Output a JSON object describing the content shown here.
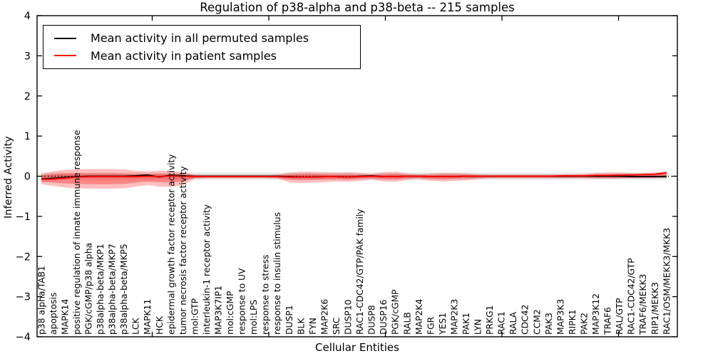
{
  "chart_data": {
    "type": "line",
    "title": "Regulation of p38-alpha and p38-beta -- 215 samples",
    "xlabel": "Cellular Entities",
    "ylabel": "Inferred Activity",
    "ylim": [
      -4,
      4
    ],
    "yticks": [
      -4,
      -3,
      -2,
      -1,
      0,
      1,
      2,
      3,
      4
    ],
    "grid": false,
    "legend_position": "upper left",
    "categories": [
      "p38 alpha/TAB1",
      "apoptosis",
      "MAPK14",
      "positive regulation of innate immune response",
      "PGK/cGMP/p38 alpha",
      "p38alpha-beta/MKP1",
      "p38alpha-beta/MKP7",
      "p38alpha-beta/MKP5",
      "LCK",
      "MAPK11",
      "HCK",
      "epidermal growth factor receptor activity",
      "tumor necrosis factor receptor activity",
      "mol:GTP",
      "interleukin-1 receptor activity",
      "MAP3K7IP1",
      "mol:cGMP",
      "response to UV",
      "mol:LPS",
      "response to stress",
      "response to insulin stimulus",
      "DUSP1",
      "BLK",
      "FYN",
      "MAP2K6",
      "SRC",
      "DUSP10",
      "RAC1-CDC42/GTP/PAK family",
      "DUSP8",
      "DUSP16",
      "PGK/cGMP",
      "RALB",
      "MAP2K4",
      "FGR",
      "YES1",
      "MAP2K3",
      "PAK1",
      "LYN",
      "PRKG1",
      "RAC1",
      "RALA",
      "CDC42",
      "CCM2",
      "PAK3",
      "MAP3K3",
      "RIPK1",
      "PAK2",
      "MAP3K12",
      "TRAF6",
      "RAL/GTP",
      "RAC1-CDC42/GTP",
      "TRAF6/MEKK3",
      "RIP1/MEKK3",
      "RAC1/OSM/MEKK3/MKK3"
    ],
    "series": [
      {
        "name": "Mean activity in all permuted samples",
        "color": "#000000",
        "values": [
          -0.07,
          -0.05,
          -0.03,
          -0.01,
          0,
          0,
          0,
          0,
          0.01,
          0.03,
          -0.02,
          0.03,
          0.01,
          0,
          0,
          0,
          0,
          0,
          0,
          0,
          0,
          -0.01,
          -0.02,
          -0.02,
          -0.01,
          -0.01,
          -0.02,
          0,
          0.01,
          -0.01,
          -0.01,
          0,
          0,
          -0.01,
          -0.01,
          -0.01,
          0,
          0,
          0,
          0,
          0,
          0,
          0,
          0,
          0,
          0,
          0,
          0,
          0,
          0,
          -0.01,
          -0.01,
          -0.01,
          -0.01
        ]
      },
      {
        "name": "Mean activity in patient samples",
        "color": "#ff0000",
        "values": [
          -0.08,
          -0.07,
          -0.05,
          -0.02,
          -0.01,
          -0.01,
          -0.01,
          -0.01,
          -0.01,
          0,
          -0.01,
          0.01,
          0,
          -0.01,
          -0.01,
          -0.01,
          -0.01,
          -0.01,
          -0.01,
          -0.01,
          -0.01,
          -0.02,
          -0.02,
          -0.02,
          -0.01,
          -0.01,
          -0.02,
          -0.01,
          0,
          -0.01,
          -0.01,
          0,
          0,
          -0.01,
          -0.01,
          -0.01,
          0,
          0,
          0,
          0,
          0,
          0,
          0,
          0,
          0.01,
          0.01,
          0.01,
          0.02,
          0.02,
          0.03,
          0.03,
          0.04,
          0.05,
          0.09
        ]
      }
    ],
    "bands": [
      {
        "name": "permuted-range-outer",
        "color": "rgba(0,0,0,0.07)",
        "upper": 0.095,
        "lower": -0.095
      },
      {
        "name": "permuted-range-inner",
        "color": "rgba(0,0,0,0.09)",
        "upper": 0.055,
        "lower": -0.055
      },
      {
        "name": "patient-range-outer",
        "color": "rgba(255,0,0,0.25)",
        "upper": [
          0.06,
          0.12,
          0.16,
          0.17,
          0.18,
          0.18,
          0.18,
          0.17,
          0.13,
          0.12,
          0.14,
          0.13,
          0.1,
          0.04,
          0.03,
          0.03,
          0.03,
          0.03,
          0.03,
          0.03,
          0.04,
          0.09,
          0.11,
          0.11,
          0.1,
          0.09,
          0.1,
          0.08,
          0.06,
          0.1,
          0.11,
          0.07,
          0.05,
          0.07,
          0.08,
          0.08,
          0.07,
          0.05,
          0.04,
          0.04,
          0.04,
          0.04,
          0.04,
          0.04,
          0.04,
          0.05,
          0.05,
          0.08,
          0.09,
          0.09,
          0.08,
          0.08,
          0.09,
          0.12
        ],
        "lower": [
          -0.2,
          -0.24,
          -0.28,
          -0.3,
          -0.31,
          -0.31,
          -0.31,
          -0.3,
          -0.26,
          -0.22,
          -0.26,
          -0.27,
          -0.22,
          -0.06,
          -0.05,
          -0.05,
          -0.05,
          -0.05,
          -0.05,
          -0.05,
          -0.06,
          -0.15,
          -0.17,
          -0.16,
          -0.15,
          -0.13,
          -0.14,
          -0.12,
          -0.08,
          -0.13,
          -0.14,
          -0.09,
          -0.07,
          -0.11,
          -0.13,
          -0.12,
          -0.1,
          -0.07,
          -0.05,
          -0.05,
          -0.05,
          -0.05,
          -0.05,
          -0.05,
          -0.05,
          -0.05,
          -0.05,
          -0.06,
          -0.06,
          -0.06,
          -0.05,
          -0.05,
          -0.05,
          -0.04
        ]
      },
      {
        "name": "patient-range-inner",
        "color": "rgba(255,0,0,0.30)",
        "upper": [
          0.02,
          0.05,
          0.07,
          0.07,
          0.07,
          0.07,
          0.07,
          0.06,
          0.05,
          0.05,
          0.06,
          0.05,
          0.04,
          0.02,
          0.01,
          0.01,
          0.01,
          0.01,
          0.01,
          0.01,
          0.02,
          0.04,
          0.05,
          0.05,
          0.04,
          0.04,
          0.04,
          0.03,
          0.03,
          0.04,
          0.05,
          0.03,
          0.02,
          0.03,
          0.04,
          0.04,
          0.03,
          0.02,
          0.02,
          0.02,
          0.02,
          0.02,
          0.02,
          0.02,
          0.02,
          0.02,
          0.02,
          0.04,
          0.04,
          0.04,
          0.04,
          0.04,
          0.05,
          0.07
        ],
        "lower": [
          -0.14,
          -0.16,
          -0.18,
          -0.19,
          -0.2,
          -0.2,
          -0.2,
          -0.19,
          -0.16,
          -0.13,
          -0.15,
          -0.16,
          -0.13,
          -0.04,
          -0.03,
          -0.03,
          -0.03,
          -0.03,
          -0.03,
          -0.03,
          -0.04,
          -0.08,
          -0.09,
          -0.09,
          -0.08,
          -0.07,
          -0.08,
          -0.06,
          -0.05,
          -0.07,
          -0.08,
          -0.05,
          -0.04,
          -0.06,
          -0.07,
          -0.06,
          -0.05,
          -0.04,
          -0.03,
          -0.03,
          -0.03,
          -0.03,
          -0.03,
          -0.03,
          -0.03,
          -0.03,
          -0.03,
          -0.04,
          -0.04,
          -0.04,
          -0.03,
          -0.03,
          -0.03,
          -0.02
        ]
      }
    ],
    "zero_line": {
      "y": 0,
      "style": "dotted",
      "color": "#000000"
    }
  }
}
